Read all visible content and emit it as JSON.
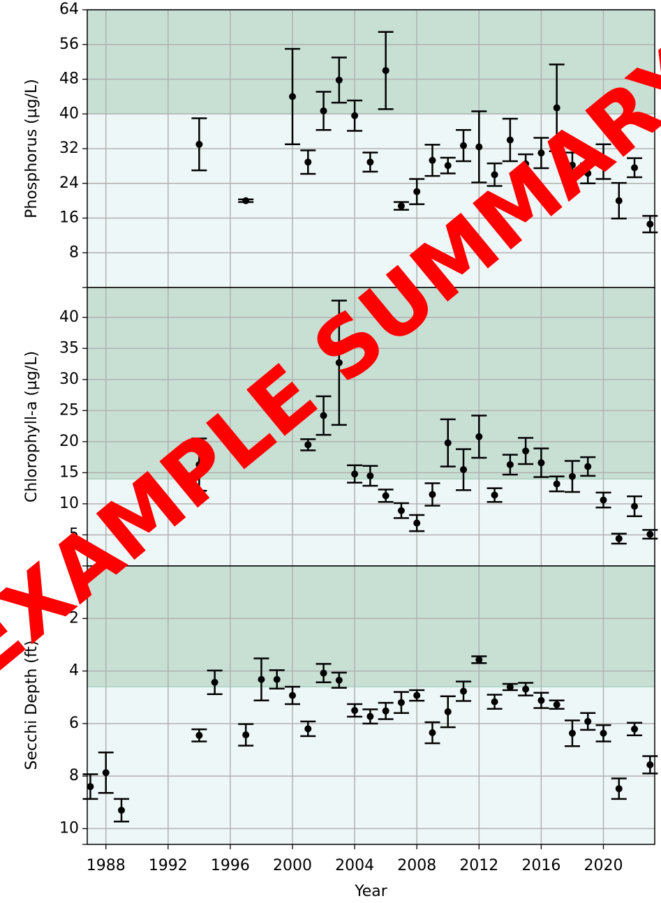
{
  "watermark": "EXAMPLE SUMMARY",
  "chart_data": [
    {
      "type": "errorbar",
      "ylabel": "Phosphorus (µg/L)",
      "x": [
        1994,
        1997,
        2000,
        2001,
        2002,
        2003,
        2004,
        2005,
        2006,
        2007,
        2008,
        2009,
        2010,
        2011,
        2012,
        2013,
        2014,
        2015,
        2016,
        2017,
        2018,
        2019,
        2020,
        2021,
        2022,
        2023
      ],
      "values": [
        33,
        20,
        44,
        28.9,
        40.7,
        47.8,
        39.6,
        28.9,
        50,
        18.8,
        22.1,
        29.3,
        28.1,
        32.7,
        32.4,
        26,
        34,
        28.5,
        31,
        41.4,
        28.2,
        26.3,
        29,
        20,
        27.6,
        14.6
      ],
      "errors": [
        6,
        0.3,
        11,
        2.7,
        4.4,
        5.2,
        3.5,
        2.2,
        8.9,
        0.9,
        2.9,
        3.6,
        1.8,
        3.6,
        8.2,
        2.6,
        4.9,
        2.2,
        3.5,
        10,
        2.9,
        2.3,
        4,
        4.1,
        2.2,
        1.9
      ],
      "ylim": [
        0,
        64
      ],
      "yticks": [
        8,
        16,
        24,
        32,
        40,
        48,
        56,
        64
      ],
      "shaded_band": [
        40,
        64
      ],
      "color": "#000000",
      "grid": true
    },
    {
      "type": "errorbar",
      "ylabel": "Chlorophyll-a (µg/L)",
      "x": [
        1994,
        2001,
        2002,
        2003,
        2004,
        2005,
        2006,
        2007,
        2008,
        2009,
        2010,
        2011,
        2012,
        2013,
        2014,
        2015,
        2016,
        2017,
        2018,
        2019,
        2020,
        2021,
        2022,
        2023
      ],
      "values": [
        16.3,
        19.5,
        24.2,
        32.7,
        14.8,
        14.5,
        11.3,
        8.9,
        6.9,
        11.5,
        19.8,
        15.5,
        20.8,
        11.4,
        16.3,
        18.5,
        16.6,
        13.2,
        14.4,
        16,
        10.6,
        4.4,
        9.6,
        5.1
      ],
      "errors": [
        4.2,
        0.9,
        3.1,
        10,
        1.4,
        1.6,
        1,
        1.2,
        1.3,
        1.8,
        3.8,
        3.3,
        3.4,
        1.1,
        1.6,
        2.1,
        2.3,
        1.2,
        2.5,
        1.5,
        1.2,
        0.8,
        1.6,
        0.7
      ],
      "ylim": [
        0,
        44.8
      ],
      "yticks": [
        5,
        10,
        15,
        20,
        25,
        30,
        35,
        40
      ],
      "shaded_band": [
        14,
        44.8
      ],
      "color": "#000000",
      "grid": true
    },
    {
      "type": "errorbar",
      "ylabel": "Secchi Depth (ft)",
      "xlabel": "Year",
      "x": [
        1987,
        1988,
        1989,
        1994,
        1995,
        1997,
        1998,
        1999,
        2000,
        2001,
        2002,
        2003,
        2004,
        2005,
        2006,
        2007,
        2008,
        2009,
        2010,
        2011,
        2012,
        2013,
        2014,
        2015,
        2016,
        2017,
        2018,
        2019,
        2020,
        2021,
        2022,
        2023
      ],
      "values": [
        8.4,
        7.87,
        9.3,
        6.45,
        4.43,
        6.43,
        4.32,
        4.32,
        4.93,
        6.2,
        4.08,
        4.35,
        5.5,
        5.73,
        5.52,
        5.2,
        4.93,
        6.35,
        5.55,
        4.77,
        3.57,
        5.17,
        4.61,
        4.69,
        5.12,
        5.28,
        6.37,
        5.92,
        6.37,
        8.48,
        6.21,
        7.57
      ],
      "errors": [
        0.47,
        0.77,
        0.43,
        0.23,
        0.45,
        0.41,
        0.8,
        0.35,
        0.33,
        0.28,
        0.35,
        0.29,
        0.24,
        0.27,
        0.31,
        0.4,
        0.2,
        0.4,
        0.59,
        0.37,
        0.13,
        0.27,
        0.12,
        0.24,
        0.29,
        0.16,
        0.49,
        0.32,
        0.31,
        0.39,
        0.24,
        0.33
      ],
      "ylim": [
        0,
        10.6
      ],
      "yticks": [
        2,
        4,
        6,
        8,
        10
      ],
      "y_inverted": true,
      "xlim": [
        1986.8,
        2023.3
      ],
      "xticks": [
        1988,
        1992,
        1996,
        2000,
        2004,
        2008,
        2012,
        2016,
        2020
      ],
      "shaded_band": [
        0,
        4.6
      ],
      "color": "#000000",
      "grid": true
    }
  ]
}
